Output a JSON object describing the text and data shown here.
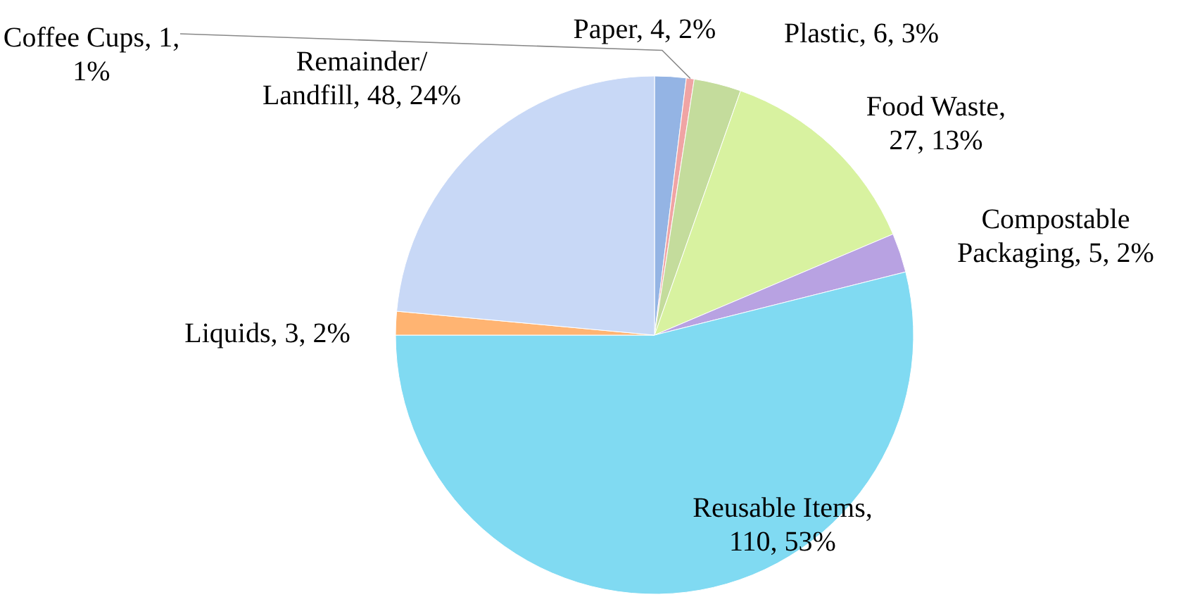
{
  "chart_data": {
    "type": "pie",
    "categories": [
      "Paper",
      "Coffee Cups",
      "Plastic",
      "Food Waste",
      "Compostable Packaging",
      "Reusable Items",
      "Liquids",
      "Remainder/Landfill"
    ],
    "values": [
      4,
      1,
      6,
      27,
      5,
      110,
      3,
      48
    ],
    "value_labels": [
      ", 4, 2%",
      ", 1, 1%",
      ", 6, 3%",
      ", 27, 13%",
      ", 5, 2%",
      ", 110, 53%",
      ", 3, 2%",
      ", 48, 24%"
    ],
    "colors": [
      "#94b4e4",
      "#f0a4a4",
      "#c4dc9c",
      "#d8f2a0",
      "#b8a2e2",
      "#80daf2",
      "#ffb472",
      "#c8d8f6"
    ]
  }
}
